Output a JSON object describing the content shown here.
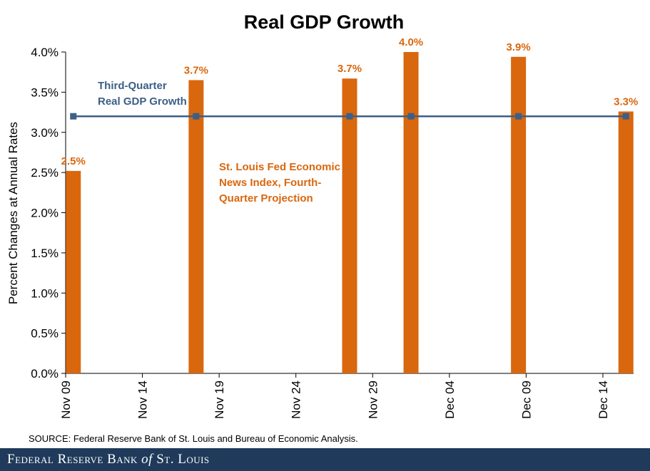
{
  "chart_data": {
    "type": "bar",
    "title": "Real GDP Growth",
    "ylabel": "Percent Changes at Annual Rates",
    "xlabel": "",
    "ylim": [
      0,
      4.0
    ],
    "yticks": [
      "0.0%",
      "0.5%",
      "1.0%",
      "1.5%",
      "2.0%",
      "2.5%",
      "3.0%",
      "3.5%",
      "4.0%"
    ],
    "xticks": [
      "Nov 09",
      "Nov 14",
      "Nov 19",
      "Nov 24",
      "Nov 29",
      "Dec 04",
      "Dec 09",
      "Dec 14"
    ],
    "x_day_range": [
      0,
      37
    ],
    "bars": {
      "name": "St. Louis Fed Economic News Index, Fourth-Quarter Projection",
      "color": "#d9670e",
      "points": [
        {
          "day": 0.5,
          "value": 2.52,
          "label": "2.5%"
        },
        {
          "day": 8.5,
          "value": 3.65,
          "label": "3.7%"
        },
        {
          "day": 18.5,
          "value": 3.67,
          "label": "3.7%"
        },
        {
          "day": 22.5,
          "value": 4.0,
          "label": "4.0%"
        },
        {
          "day": 29.5,
          "value": 3.94,
          "label": "3.9%"
        },
        {
          "day": 36.5,
          "value": 3.26,
          "label": "3.3%"
        }
      ]
    },
    "line": {
      "name": "Third-Quarter Real GDP Growth",
      "color": "#3c5f87",
      "value": 3.2,
      "marker_days": [
        0.5,
        8.5,
        18.5,
        22.5,
        29.5,
        36.5
      ]
    },
    "annotations": {
      "line_label": [
        "Third-Quarter",
        "Real GDP Growth"
      ],
      "bar_label": [
        "St. Louis Fed Economic",
        "News Index, Fourth-",
        "Quarter Projection"
      ]
    }
  },
  "source": "SOURCE: Federal Reserve Bank of St. Louis and Bureau of Economic Analysis.",
  "footer": {
    "part1": "Federal Reserve Bank",
    "of": "of",
    "part2": "St. Louis"
  }
}
